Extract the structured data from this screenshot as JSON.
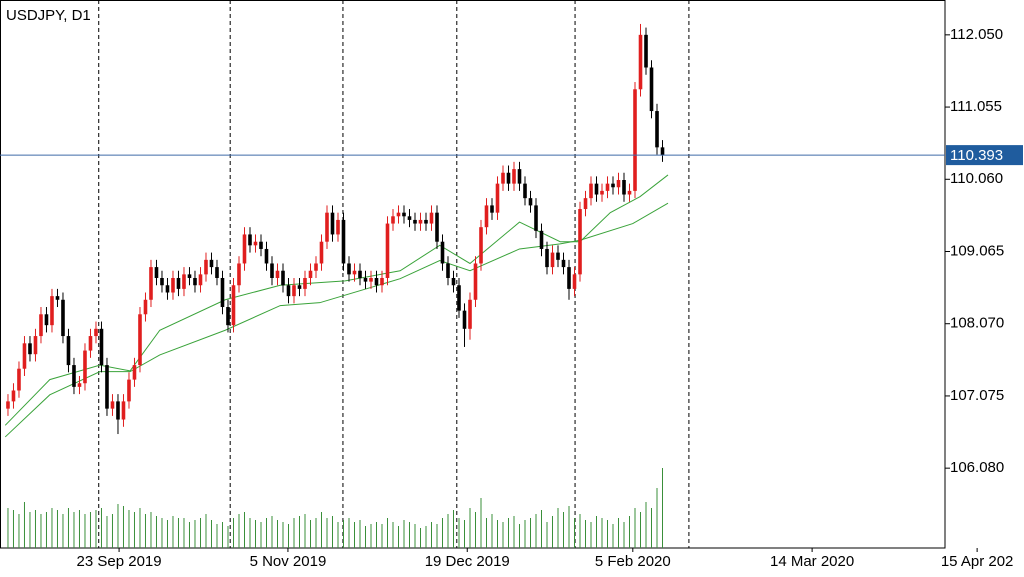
{
  "chart_data": {
    "type": "candlestick",
    "title": "USDJPY, D1",
    "xlim": [
      -1.45,
      170.36
    ],
    "ylim": [
      104.98,
      112.53
    ],
    "xticks": [
      {
        "value": 20.2,
        "label": "23 Sep 2019"
      },
      {
        "value": 50.9,
        "label": "5 Nov 2019"
      },
      {
        "value": 83.5,
        "label": "19 Dec 2019"
      },
      {
        "value": 113.6,
        "label": "5 Feb 2020"
      },
      {
        "value": 146.2,
        "label": "14 Mar 2020"
      },
      {
        "value": 176.2,
        "label": "15 Apr 202"
      }
    ],
    "xgrid": [
      16.5,
      40.4,
      60.9,
      81.6,
      103.1,
      123.8
    ],
    "yticks": [
      {
        "value": 112.05,
        "label": "112.050"
      },
      111.055,
      {
        "value": 110.06,
        "label": "110.060"
      },
      109.065,
      {
        "value": 108.07,
        "label": "108.070"
      },
      107.075,
      {
        "value": 106.08,
        "label": "106.080"
      }
    ],
    "current_price": 110.393,
    "up_color": "#e01e1e",
    "down_color": "#000000",
    "volume_color": "#3a8f3a",
    "open": [
      106.9,
      107.0,
      107.15,
      107.45,
      107.8,
      107.65,
      107.9,
      108.2,
      108.05,
      108.45,
      108.4,
      107.9,
      107.5,
      107.2,
      107.25,
      107.7,
      107.9,
      108.0,
      107.5,
      106.9,
      107.0,
      106.75,
      107.0,
      107.3,
      107.5,
      108.2,
      108.4,
      108.85,
      108.7,
      108.6,
      108.5,
      108.7,
      108.55,
      108.75,
      108.7,
      108.6,
      108.75,
      108.95,
      108.85,
      108.7,
      108.3,
      108.05,
      108.6,
      108.9,
      109.3,
      109.15,
      109.2,
      109.1,
      108.9,
      108.7,
      108.8,
      108.6,
      108.45,
      108.6,
      108.55,
      108.7,
      108.8,
      108.9,
      109.2,
      109.6,
      109.3,
      109.5,
      108.9,
      108.75,
      108.8,
      108.7,
      108.65,
      108.7,
      108.6,
      108.7,
      109.45,
      109.55,
      109.6,
      109.55,
      109.5,
      109.45,
      109.5,
      109.45,
      109.6,
      109.2,
      108.9,
      108.7,
      108.6,
      108.25,
      108.0,
      108.4,
      108.9,
      109.4,
      109.7,
      109.6,
      110.0,
      110.15,
      110.0,
      110.2,
      110.0,
      109.8,
      109.7,
      109.35,
      109.1,
      108.85,
      109.05,
      108.95,
      108.85,
      108.55,
      108.75,
      109.65,
      109.8,
      110.0,
      109.85,
      109.9,
      110.0,
      109.95,
      110.05,
      109.85,
      109.9,
      111.3,
      112.05,
      111.6,
      111.0,
      110.5
    ],
    "high": [
      107.1,
      107.25,
      107.55,
      107.9,
      107.9,
      108.0,
      108.3,
      108.3,
      108.55,
      108.55,
      108.5,
      108.0,
      107.6,
      107.35,
      107.8,
      108.0,
      108.1,
      108.1,
      107.6,
      107.1,
      107.1,
      107.1,
      107.4,
      107.6,
      108.3,
      108.5,
      108.95,
      108.95,
      108.8,
      108.7,
      108.8,
      108.8,
      108.85,
      108.85,
      108.8,
      108.85,
      109.05,
      109.05,
      108.95,
      108.8,
      108.4,
      108.7,
      109.0,
      109.4,
      109.4,
      109.3,
      109.3,
      109.2,
      109.0,
      108.9,
      108.9,
      108.7,
      108.7,
      108.7,
      108.8,
      108.9,
      109.0,
      109.3,
      109.7,
      109.7,
      109.6,
      109.6,
      109.0,
      108.9,
      108.9,
      108.8,
      108.8,
      108.8,
      108.8,
      109.55,
      109.65,
      109.7,
      109.7,
      109.65,
      109.6,
      109.6,
      109.6,
      109.7,
      109.7,
      109.3,
      109.0,
      108.8,
      108.7,
      108.35,
      108.5,
      109.0,
      109.5,
      109.8,
      109.8,
      110.1,
      110.25,
      110.25,
      110.3,
      110.3,
      110.1,
      109.9,
      109.8,
      109.45,
      109.2,
      109.15,
      109.15,
      109.05,
      108.95,
      108.85,
      109.75,
      109.9,
      110.1,
      110.1,
      110.0,
      110.1,
      110.1,
      110.15,
      110.15,
      110.0,
      111.4,
      112.2,
      112.15,
      111.7,
      111.1,
      110.6
    ],
    "low": [
      106.8,
      106.9,
      107.05,
      107.35,
      107.55,
      107.55,
      107.8,
      107.95,
      107.95,
      108.3,
      107.8,
      107.4,
      107.1,
      107.1,
      107.15,
      107.6,
      107.8,
      107.4,
      106.8,
      106.8,
      106.55,
      106.65,
      106.9,
      107.2,
      107.4,
      108.1,
      108.3,
      108.6,
      108.5,
      108.4,
      108.4,
      108.45,
      108.45,
      108.6,
      108.5,
      108.5,
      108.65,
      108.75,
      108.6,
      108.2,
      107.95,
      107.95,
      108.5,
      108.8,
      109.05,
      109.05,
      109.0,
      108.8,
      108.6,
      108.6,
      108.5,
      108.35,
      108.35,
      108.45,
      108.45,
      108.6,
      108.7,
      108.8,
      109.1,
      109.2,
      109.2,
      108.8,
      108.65,
      108.65,
      108.6,
      108.55,
      108.55,
      108.5,
      108.5,
      108.6,
      109.35,
      109.45,
      109.45,
      109.4,
      109.35,
      109.35,
      109.35,
      109.35,
      109.1,
      108.8,
      108.6,
      108.5,
      108.15,
      107.75,
      107.85,
      108.3,
      108.8,
      109.3,
      109.5,
      109.5,
      109.9,
      109.9,
      109.9,
      109.9,
      109.7,
      109.6,
      109.25,
      109.0,
      108.75,
      108.75,
      108.85,
      108.75,
      108.4,
      108.45,
      108.65,
      109.55,
      109.7,
      109.75,
      109.75,
      109.8,
      109.85,
      109.85,
      109.75,
      109.75,
      109.8,
      111.2,
      111.5,
      110.9,
      110.4,
      110.3
    ],
    "close": [
      107.0,
      107.15,
      107.45,
      107.8,
      107.65,
      107.9,
      108.2,
      108.05,
      108.45,
      108.4,
      107.9,
      107.5,
      107.2,
      107.25,
      107.7,
      107.9,
      108.0,
      107.5,
      106.9,
      107.0,
      106.75,
      107.0,
      107.3,
      107.5,
      108.2,
      108.4,
      108.85,
      108.7,
      108.6,
      108.5,
      108.7,
      108.55,
      108.75,
      108.7,
      108.6,
      108.75,
      108.95,
      108.85,
      108.7,
      108.3,
      108.05,
      108.6,
      108.9,
      109.3,
      109.15,
      109.2,
      109.1,
      108.9,
      108.7,
      108.8,
      108.6,
      108.45,
      108.6,
      108.55,
      108.7,
      108.8,
      108.9,
      109.2,
      109.6,
      109.3,
      109.5,
      108.9,
      108.75,
      108.8,
      108.7,
      108.65,
      108.7,
      108.6,
      108.7,
      109.45,
      109.55,
      109.6,
      109.55,
      109.5,
      109.45,
      109.5,
      109.45,
      109.6,
      109.2,
      108.9,
      108.7,
      108.6,
      108.25,
      108.0,
      108.4,
      108.9,
      109.4,
      109.7,
      109.6,
      110.0,
      110.15,
      110.0,
      110.2,
      110.0,
      109.8,
      109.7,
      109.35,
      109.1,
      108.85,
      109.05,
      108.95,
      108.85,
      108.55,
      108.75,
      109.65,
      109.8,
      110.0,
      109.85,
      109.9,
      110.0,
      109.95,
      110.05,
      109.85,
      109.9,
      111.3,
      112.05,
      111.6,
      111.0,
      110.5,
      110.39
    ],
    "vlim": [
      0,
      100
    ],
    "volume": [
      40,
      38,
      34,
      46,
      36,
      38,
      34,
      36,
      40,
      38,
      34,
      40,
      36,
      38,
      34,
      36,
      38,
      40,
      32,
      34,
      44,
      42,
      38,
      36,
      40,
      34,
      36,
      32,
      30,
      28,
      32,
      30,
      30,
      26,
      28,
      30,
      34,
      28,
      24,
      26,
      22,
      30,
      34,
      36,
      30,
      28,
      26,
      30,
      32,
      28,
      26,
      24,
      30,
      32,
      34,
      28,
      30,
      36,
      30,
      32,
      26,
      28,
      30,
      26,
      28,
      22,
      24,
      26,
      24,
      30,
      26,
      22,
      28,
      26,
      24,
      20,
      22,
      26,
      24,
      30,
      34,
      38,
      30,
      28,
      40,
      36,
      50,
      30,
      34,
      28,
      26,
      30,
      32,
      24,
      28,
      30,
      34,
      38,
      26,
      32,
      40,
      36,
      42,
      30,
      34,
      28,
      26,
      32,
      30,
      28,
      24,
      30,
      26,
      32,
      40,
      36,
      46,
      40,
      60,
      80
    ],
    "lines": [
      {
        "color": "#3aa33a",
        "x": [
          -0.5,
          7.6,
          16.7,
          22.2,
          27.6,
          39.5,
          49.5,
          61.3,
          71.3,
          78.5,
          84,
          93,
          100.4,
          104,
          109.5,
          114.9,
          120
        ],
        "values": [
          106.67,
          107.3,
          107.5,
          107.42,
          107.98,
          108.4,
          108.6,
          108.66,
          108.8,
          109.15,
          108.9,
          109.47,
          109.2,
          109.2,
          109.6,
          109.82,
          110.12
        ]
      },
      {
        "color": "#3aa33a",
        "x": [
          -0.5,
          7.6,
          16.7,
          22.2,
          27.6,
          39.5,
          49.5,
          56.7,
          71.3,
          78.5,
          84,
          93,
          100.4,
          104,
          113.6,
          120
        ],
        "values": [
          106.51,
          107.09,
          107.41,
          107.41,
          107.64,
          107.98,
          108.32,
          108.36,
          108.69,
          108.94,
          108.8,
          109.1,
          109.17,
          109.22,
          109.45,
          109.73
        ]
      }
    ]
  }
}
